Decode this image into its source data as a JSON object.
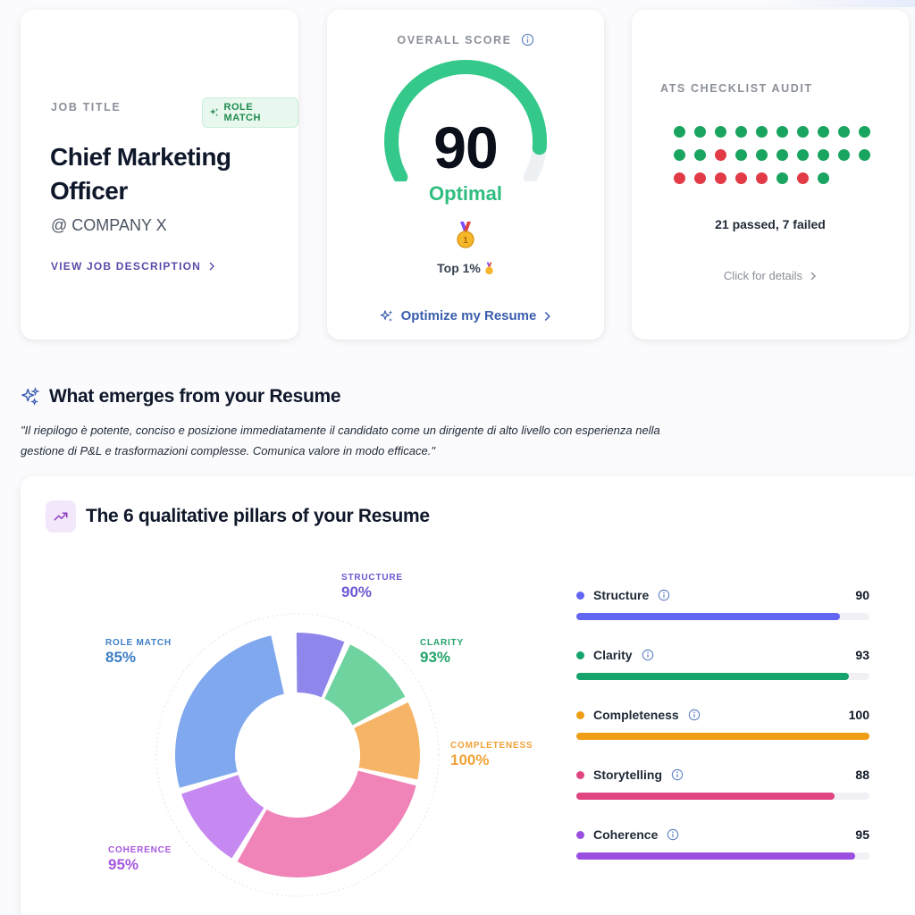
{
  "job_card": {
    "label": "JOB TITLE",
    "badge": "ROLE MATCH",
    "title": "Chief Marketing Officer",
    "company": "@ COMPANY X",
    "link": "VIEW JOB DESCRIPTION"
  },
  "score_card": {
    "label": "OVERALL SCORE",
    "score": "90",
    "score_value": 90,
    "score_max": 100,
    "status": "Optimal",
    "rank": "Top 1%",
    "cta": "Optimize my Resume"
  },
  "ats_card": {
    "label": "ATS CHECKLIST AUDIT",
    "checks": [
      1,
      1,
      1,
      1,
      1,
      1,
      1,
      1,
      1,
      1,
      1,
      1,
      0,
      1,
      1,
      1,
      1,
      1,
      1,
      1,
      0,
      0,
      0,
      0,
      0,
      1,
      0,
      1
    ],
    "summary": "21 passed, 7 failed",
    "details": "Click for details"
  },
  "emerge": {
    "title": "What emerges from your Resume",
    "quote": "\"Il riepilogo è potente, conciso e posizione immediatamente il candidato come un dirigente di alto livello con esperienza nella gestione di P&L e trasformazioni complesse. Comunica valore in modo efficace.\""
  },
  "pillars": {
    "title": "The 6 qualitative pillars of your Resume",
    "donut": [
      {
        "name": "STRUCTURE",
        "pct": "90%",
        "value": 90,
        "color": "#8f86ec"
      },
      {
        "name": "CLARITY",
        "pct": "93%",
        "value": 93,
        "color": "#6fd3a0"
      },
      {
        "name": "COMPLETENESS",
        "pct": "100%",
        "value": 100,
        "color": "#f6b466"
      },
      {
        "name": "STORYTELLING",
        "pct": "",
        "value": 88,
        "color": "#f083b8"
      },
      {
        "name": "COHERENCE",
        "pct": "95%",
        "value": 95,
        "color": "#c688f1"
      },
      {
        "name": "ROLE MATCH",
        "pct": "85%",
        "value": 85,
        "color": "#7fa8ef"
      }
    ],
    "bars": [
      {
        "name": "Structure",
        "score": "90",
        "value": 90,
        "color": "#6366f1"
      },
      {
        "name": "Clarity",
        "score": "93",
        "value": 93,
        "color": "#16a36c"
      },
      {
        "name": "Completeness",
        "score": "100",
        "value": 100,
        "color": "#ef9d14"
      },
      {
        "name": "Storytelling",
        "score": "88",
        "value": 88,
        "color": "#e04481"
      },
      {
        "name": "Coherence",
        "score": "95",
        "value": 95,
        "color": "#9b4fe0"
      }
    ],
    "label_colors": {
      "STRUCTURE": "#6b59d3",
      "CLARITY": "#22a36a",
      "COMPLETENESS": "#f0a23a",
      "COHERENCE": "#a757de",
      "ROLE MATCH": "#3d7ec5"
    }
  },
  "colors": {
    "pass": "#19a45f",
    "fail": "#e23a46",
    "gauge": "#34c98a"
  }
}
